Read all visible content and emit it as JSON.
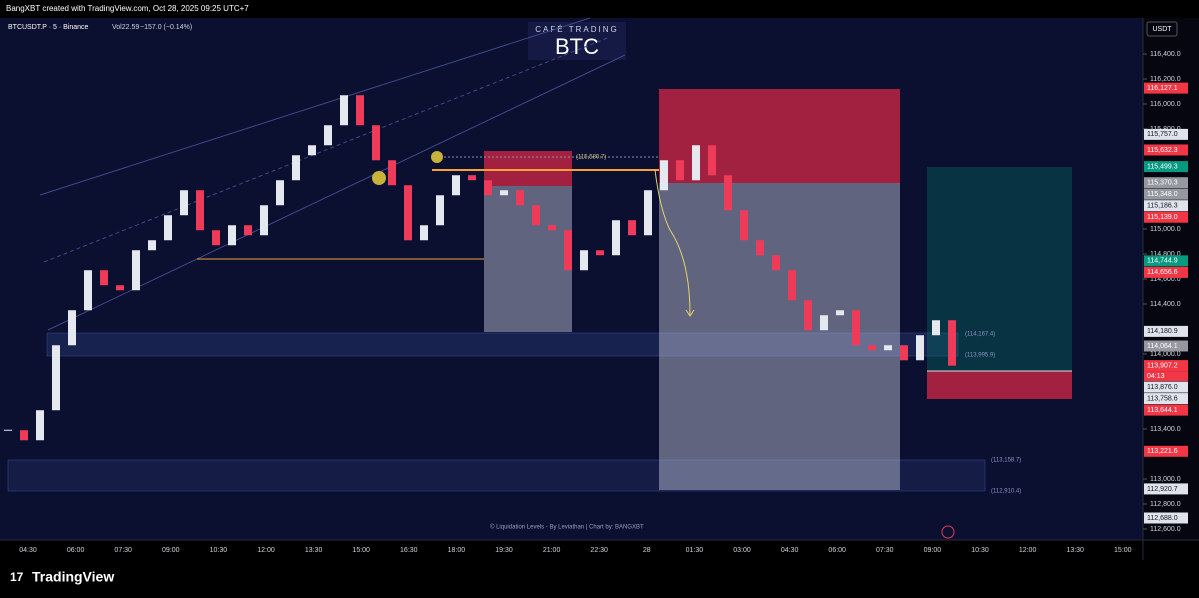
{
  "header": "BangXBT created with TradingView.com, Oct 28, 2025 09:25 UTC+7",
  "footer_brand": "TradingView",
  "chart_data": {
    "type": "candlestick",
    "symbol": "BTCUSDT.P · 5 · Binance",
    "volume": "Vol22.59",
    "change": "−157.0 (−0.14%)",
    "watermark_top": "CAFÉ TRADING",
    "watermark": "BTC",
    "credit": "© Liquidation Levels - By Leviathan | Chart by: BANGXBT",
    "currency": "USDT",
    "countdown": "04:13",
    "categories": [
      "04:30",
      "06:00",
      "07:30",
      "09:00",
      "10:30",
      "12:00",
      "13:30",
      "15:00",
      "16:30",
      "18:00",
      "19:30",
      "21:00",
      "22:30",
      "28",
      "01:30",
      "03:00",
      "04:30",
      "06:00",
      "07:30",
      "09:00",
      "10:30",
      "12:00",
      "13:30",
      "15:00"
    ],
    "closes": [
      113390,
      113310,
      113550,
      114070,
      114350,
      114670,
      114550,
      114510,
      114830,
      114910,
      115110,
      115310,
      114990,
      114870,
      115030,
      114950,
      115190,
      115390,
      115590,
      115670,
      115830,
      116070,
      115830,
      115550,
      115350,
      114910,
      115030,
      115270,
      115430,
      115390,
      115270,
      115310,
      115190,
      115030,
      114990,
      114670,
      114830,
      114790,
      115070,
      114950,
      115310,
      115550,
      115390,
      115670,
      115430,
      115150,
      114910,
      114790,
      114670,
      114430,
      114190,
      114310,
      114350,
      114070,
      114030,
      114070,
      113950,
      114150,
      114270,
      113907
    ],
    "up_color": "#e6e8f0",
    "down_color": "#ef3b5a",
    "ylim": [
      112512,
      116688
    ],
    "yticks": [
      {
        "value": 116400,
        "label": "116,400.0"
      },
      {
        "value": 116200,
        "label": "116,200.0"
      },
      {
        "value": 116000,
        "label": "116,000.0"
      },
      {
        "value": 115800,
        "label": "115,800.0"
      },
      {
        "value": 115000,
        "label": "115,000.0"
      },
      {
        "value": 114800,
        "label": "114,800.0"
      },
      {
        "value": 114600,
        "label": "114,600.0"
      },
      {
        "value": 114400,
        "label": "114,400.0"
      },
      {
        "value": 114000,
        "label": "114,000.0"
      },
      {
        "value": 113400,
        "label": "113,400.0"
      },
      {
        "value": 113000,
        "label": "113,000.0"
      },
      {
        "value": 112800,
        "label": "112,800.0"
      },
      {
        "value": 112600,
        "label": "112,600.0"
      }
    ],
    "price_labels": [
      {
        "value": 116127.1,
        "label": "116,127.1",
        "color": "#f23645"
      },
      {
        "value": 115757.0,
        "label": "115,757.0",
        "color": "#e0e3eb"
      },
      {
        "value": 115632.3,
        "label": "115,632.3",
        "color": "#f23645"
      },
      {
        "value": 115499.3,
        "label": "115,499.3",
        "color": "#089981"
      },
      {
        "value": 115370.3,
        "label": "115,370.3",
        "color": "#9598a1"
      },
      {
        "value": 115348.0,
        "label": "115,348.0",
        "color": "#9598a1"
      },
      {
        "value": 115186.3,
        "label": "115,186.3",
        "color": "#e0e3eb"
      },
      {
        "value": 115139.0,
        "label": "115,139.0",
        "color": "#f23645"
      },
      {
        "value": 114744.9,
        "label": "114,744.9",
        "color": "#089981"
      },
      {
        "value": 114656.6,
        "label": "114,656.6",
        "color": "#f23645"
      },
      {
        "value": 114180.9,
        "label": "114,180.9",
        "color": "#e0e3eb"
      },
      {
        "value": 114064.1,
        "label": "114,064.1",
        "color": "#9598a1"
      },
      {
        "value": 113907.2,
        "label": "113,907.2",
        "color": "#f23645"
      },
      {
        "value": 113876.0,
        "label": "113,876.0",
        "color": "#e0e3eb"
      },
      {
        "value": 113758.6,
        "label": "113,758.6",
        "color": "#e0e3eb"
      },
      {
        "value": 113644.1,
        "label": "113,644.1",
        "color": "#f23645"
      },
      {
        "value": 113221.6,
        "label": "113,221.6",
        "color": "#f23645"
      },
      {
        "value": 112920.7,
        "label": "112,920.7",
        "color": "#e0e3eb"
      },
      {
        "value": 112688.0,
        "label": "112,688.0",
        "color": "#e0e3eb"
      }
    ],
    "annotations": [
      "(115,580.7)",
      "(114,167.4)",
      "(113,995.9)",
      "(113,158.7)",
      "(112,910.4)"
    ]
  }
}
